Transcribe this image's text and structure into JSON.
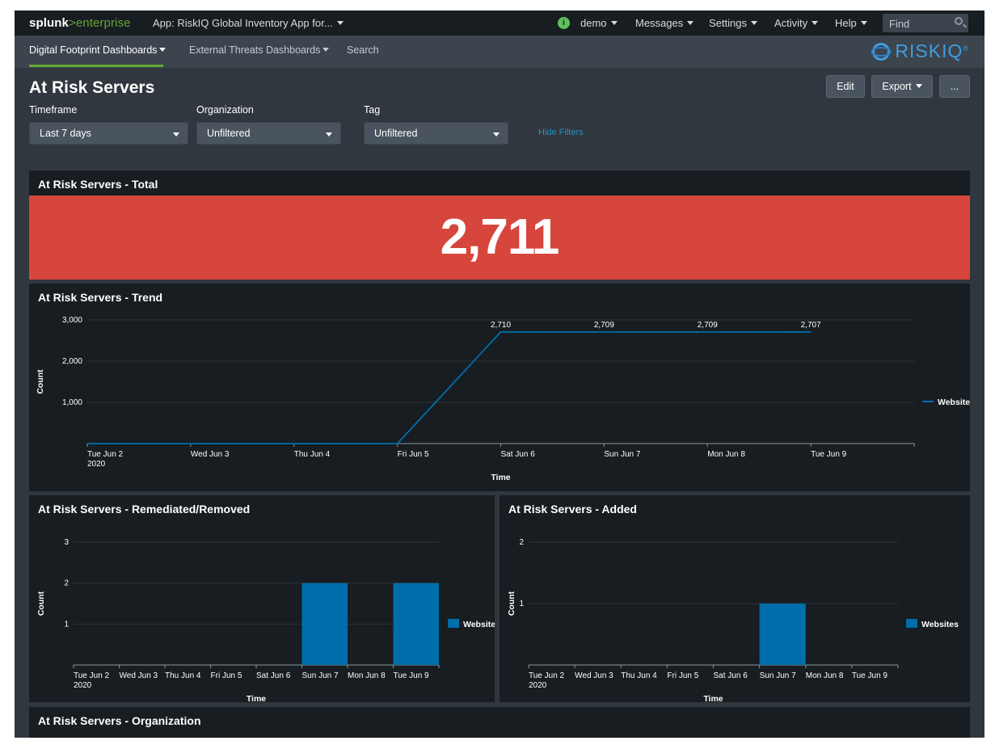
{
  "topbar": {
    "logo_splunk": "splunk",
    "logo_gt": ">",
    "logo_enterprise": "enterprise",
    "app_label": "App: RiskIQ Global Inventory App for...",
    "status_glyph": "i",
    "user": "demo",
    "messages": "Messages",
    "settings": "Settings",
    "activity": "Activity",
    "help": "Help",
    "find_placeholder": "Find"
  },
  "appbar": {
    "nav": [
      "Digital Footprint Dashboards",
      "External Threats Dashboards",
      "Search"
    ],
    "brand": "RISKIQ",
    "brand_mark": "®"
  },
  "dashboard": {
    "title": "At Risk Servers",
    "buttons": {
      "edit": "Edit",
      "export": "Export",
      "more": "..."
    },
    "filters": [
      {
        "label": "Timeframe",
        "value": "Last 7 days"
      },
      {
        "label": "Organization",
        "value": "Unfiltered"
      },
      {
        "label": "Tag",
        "value": "Unfiltered"
      }
    ],
    "hide_filters": "Hide Filters"
  },
  "panels": {
    "total": {
      "title": "At Risk Servers - Total",
      "value": "2,711"
    },
    "trend": {
      "title": "At Risk Servers - Trend"
    },
    "removed": {
      "title": "At Risk Servers - Remediated/Removed"
    },
    "added": {
      "title": "At Risk Servers - Added"
    },
    "organization": {
      "title": "At Risk Servers - Organization"
    }
  },
  "colors": {
    "accent_green": "#65a637",
    "alert_red": "#d6463c",
    "series_blue": "#006eaa",
    "link_blue": "#1e93c6"
  },
  "chart_data": [
    {
      "type": "line",
      "title": "At Risk Servers - Trend",
      "xlabel": "Time",
      "ylabel": "Count",
      "x": [
        "Tue Jun 2",
        "Wed Jun 3",
        "Thu Jun 4",
        "Fri Jun 5",
        "Sat Jun 6",
        "Sun Jun 7",
        "Mon Jun 8",
        "Tue Jun 9"
      ],
      "x_sublabel": "2020",
      "yticks": [
        "1,000",
        "2,000",
        "3,000"
      ],
      "ylim": [
        0,
        3000
      ],
      "series": [
        {
          "name": "Websites",
          "values": [
            0,
            0,
            0,
            0,
            2710,
            2709,
            2709,
            2707
          ]
        }
      ],
      "data_labels": [
        "2,710",
        "2,709",
        "2,709",
        "2,707"
      ],
      "legend": "right"
    },
    {
      "type": "bar",
      "title": "At Risk Servers - Remediated/Removed",
      "xlabel": "Time",
      "ylabel": "Count",
      "categories": [
        "Tue Jun 2",
        "Wed Jun 3",
        "Thu Jun 4",
        "Fri Jun 5",
        "Sat Jun 6",
        "Sun Jun 7",
        "Mon Jun 8",
        "Tue Jun 9"
      ],
      "x_sublabel": "2020",
      "yticks": [
        "1",
        "2",
        "3"
      ],
      "ylim": [
        0,
        3
      ],
      "series": [
        {
          "name": "Websites",
          "values": [
            0,
            0,
            0,
            0,
            0,
            2,
            0,
            2
          ]
        }
      ],
      "legend": "right"
    },
    {
      "type": "bar",
      "title": "At Risk Servers - Added",
      "xlabel": "Time",
      "ylabel": "Count",
      "categories": [
        "Tue Jun 2",
        "Wed Jun 3",
        "Thu Jun 4",
        "Fri Jun 5",
        "Sat Jun 6",
        "Sun Jun 7",
        "Mon Jun 8",
        "Tue Jun 9"
      ],
      "x_sublabel": "2020",
      "yticks": [
        "1",
        "2"
      ],
      "ylim": [
        0,
        2
      ],
      "series": [
        {
          "name": "Websites",
          "values": [
            0,
            0,
            0,
            0,
            0,
            1,
            0,
            0
          ]
        }
      ],
      "legend": "right"
    }
  ]
}
